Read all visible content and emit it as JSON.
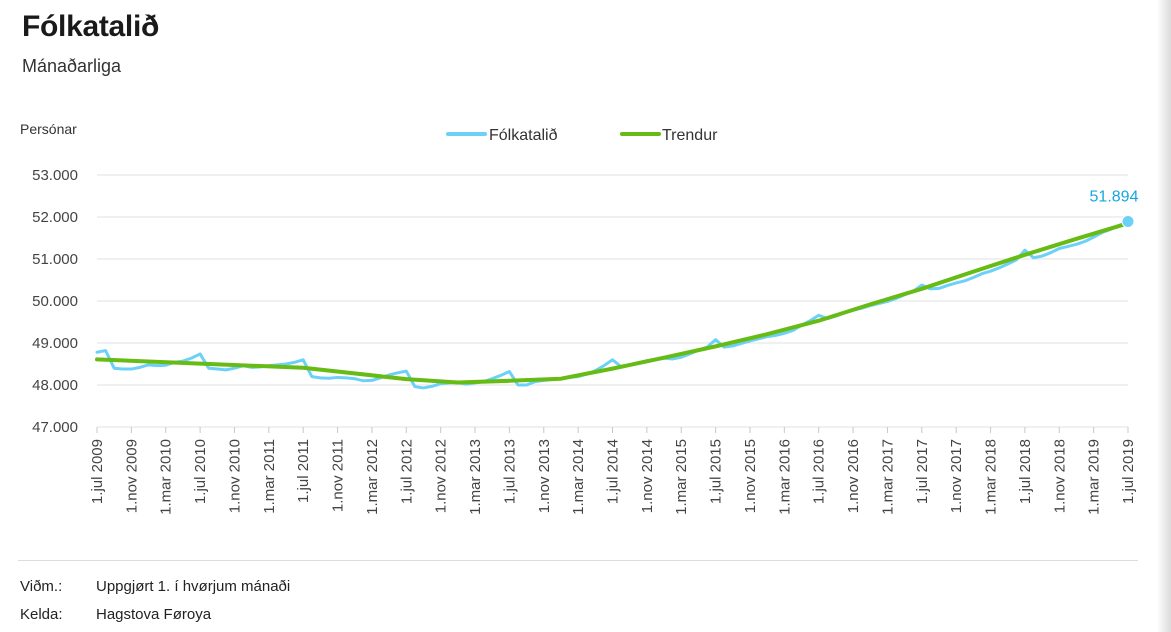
{
  "title": "Fólkatalið",
  "subtitle": "Mánaðarliga",
  "footer": {
    "note_label": "Viðm.:",
    "note_value": "Uppgjørt 1. í hvørjum mánaði",
    "source_label": "Kelda:",
    "source_value": "Hagstova Føroya"
  },
  "colors": {
    "population": "#6dd0f7",
    "trend": "#66bb14",
    "highlight": "#16a7e0",
    "grid": "#e0e0e0"
  },
  "chart_data": {
    "type": "line",
    "ylabel": "Persónar",
    "ylim": [
      47000,
      53000
    ],
    "yticks": [
      47000,
      48000,
      49000,
      50000,
      51000,
      52000,
      53000
    ],
    "ytick_labels": [
      "47.000",
      "48.000",
      "49.000",
      "50.000",
      "51.000",
      "52.000",
      "53.000"
    ],
    "grid": true,
    "legend": "top-center",
    "x_start": "2009-07",
    "x_end": "2019-07",
    "x_tick_labels": [
      "1.jul 2009",
      "1.nov 2009",
      "1.mar 2010",
      "1.jul 2010",
      "1.nov 2010",
      "1.mar 2011",
      "1.jul 2011",
      "1.nov 2011",
      "1.mar 2012",
      "1.jul 2012",
      "1.nov 2012",
      "1.mar 2013",
      "1.jul 2013",
      "1.nov 2013",
      "1.mar 2014",
      "1.jul 2014",
      "1.nov 2014",
      "1.mar 2015",
      "1.jul 2015",
      "1.nov 2015",
      "1.mar 2016",
      "1.jul 2016",
      "1.nov 2016",
      "1.mar 2017",
      "1.jul 2017",
      "1.nov 2017",
      "1.mar 2018",
      "1.jul 2018",
      "1.nov 2018",
      "1.mar 2019",
      "1.jul 2019"
    ],
    "series": [
      {
        "name": "Fólkatalið",
        "x": [
          "2009-07",
          "2009-08",
          "2009-09",
          "2009-10",
          "2009-11",
          "2009-12",
          "2010-01",
          "2010-02",
          "2010-03",
          "2010-04",
          "2010-05",
          "2010-06",
          "2010-07",
          "2010-08",
          "2010-09",
          "2010-10",
          "2010-11",
          "2010-12",
          "2011-01",
          "2011-02",
          "2011-03",
          "2011-04",
          "2011-05",
          "2011-06",
          "2011-07",
          "2011-08",
          "2011-09",
          "2011-10",
          "2011-11",
          "2011-12",
          "2012-01",
          "2012-02",
          "2012-03",
          "2012-04",
          "2012-05",
          "2012-06",
          "2012-07",
          "2012-08",
          "2012-09",
          "2012-10",
          "2012-11",
          "2012-12",
          "2013-01",
          "2013-02",
          "2013-03",
          "2013-04",
          "2013-05",
          "2013-06",
          "2013-07",
          "2013-08",
          "2013-09",
          "2013-10",
          "2013-11",
          "2013-12",
          "2014-01",
          "2014-02",
          "2014-03",
          "2014-04",
          "2014-05",
          "2014-06",
          "2014-07",
          "2014-08",
          "2014-09",
          "2014-10",
          "2014-11",
          "2014-12",
          "2015-01",
          "2015-02",
          "2015-03",
          "2015-04",
          "2015-05",
          "2015-06",
          "2015-07",
          "2015-08",
          "2015-09",
          "2015-10",
          "2015-11",
          "2015-12",
          "2016-01",
          "2016-02",
          "2016-03",
          "2016-04",
          "2016-05",
          "2016-06",
          "2016-07",
          "2016-08",
          "2016-09",
          "2016-10",
          "2016-11",
          "2016-12",
          "2017-01",
          "2017-02",
          "2017-03",
          "2017-04",
          "2017-05",
          "2017-06",
          "2017-07",
          "2017-08",
          "2017-09",
          "2017-10",
          "2017-11",
          "2017-12",
          "2018-01",
          "2018-02",
          "2018-03",
          "2018-04",
          "2018-05",
          "2018-06",
          "2018-07",
          "2018-08",
          "2018-09",
          "2018-10",
          "2018-11",
          "2018-12",
          "2019-01",
          "2019-02",
          "2019-03",
          "2019-04",
          "2019-05",
          "2019-06",
          "2019-07"
        ],
        "y": [
          48780,
          48820,
          48400,
          48380,
          48380,
          48420,
          48480,
          48460,
          48470,
          48540,
          48570,
          48640,
          48740,
          48400,
          48380,
          48360,
          48400,
          48460,
          48420,
          48430,
          48460,
          48480,
          48500,
          48540,
          48600,
          48200,
          48170,
          48160,
          48180,
          48170,
          48150,
          48100,
          48110,
          48170,
          48240,
          48290,
          48330,
          47960,
          47930,
          47970,
          48030,
          48050,
          48060,
          48020,
          48050,
          48080,
          48150,
          48230,
          48320,
          48000,
          48000,
          48080,
          48110,
          48130,
          48150,
          48180,
          48200,
          48260,
          48340,
          48460,
          48600,
          48440,
          48470,
          48520,
          48580,
          48600,
          48640,
          48620,
          48660,
          48740,
          48830,
          48900,
          49080,
          48900,
          48930,
          48990,
          49050,
          49100,
          49150,
          49180,
          49230,
          49300,
          49420,
          49530,
          49660,
          49580,
          49640,
          49720,
          49780,
          49830,
          49890,
          49940,
          49990,
          50060,
          50150,
          50230,
          50380,
          50290,
          50300,
          50370,
          50430,
          50480,
          50560,
          50650,
          50710,
          50790,
          50880,
          50980,
          51210,
          51030,
          51070,
          51150,
          51250,
          51300,
          51350,
          51420,
          51520,
          51630,
          51710,
          51800,
          51894
        ]
      },
      {
        "name": "Trendur",
        "x": [
          "2009-07",
          "2010-07",
          "2011-07",
          "2012-07",
          "2013-01",
          "2013-07",
          "2014-01",
          "2014-07",
          "2015-01",
          "2015-07",
          "2016-01",
          "2016-07",
          "2017-01",
          "2017-07",
          "2018-01",
          "2018-07",
          "2019-01",
          "2019-07"
        ],
        "y": [
          48610,
          48510,
          48410,
          48140,
          48060,
          48100,
          48150,
          48390,
          48650,
          48920,
          49210,
          49530,
          49920,
          50290,
          50700,
          51100,
          51480,
          51850
        ]
      }
    ],
    "annotation": {
      "label": "51.894",
      "x": "2019-07",
      "y": 51894
    }
  }
}
